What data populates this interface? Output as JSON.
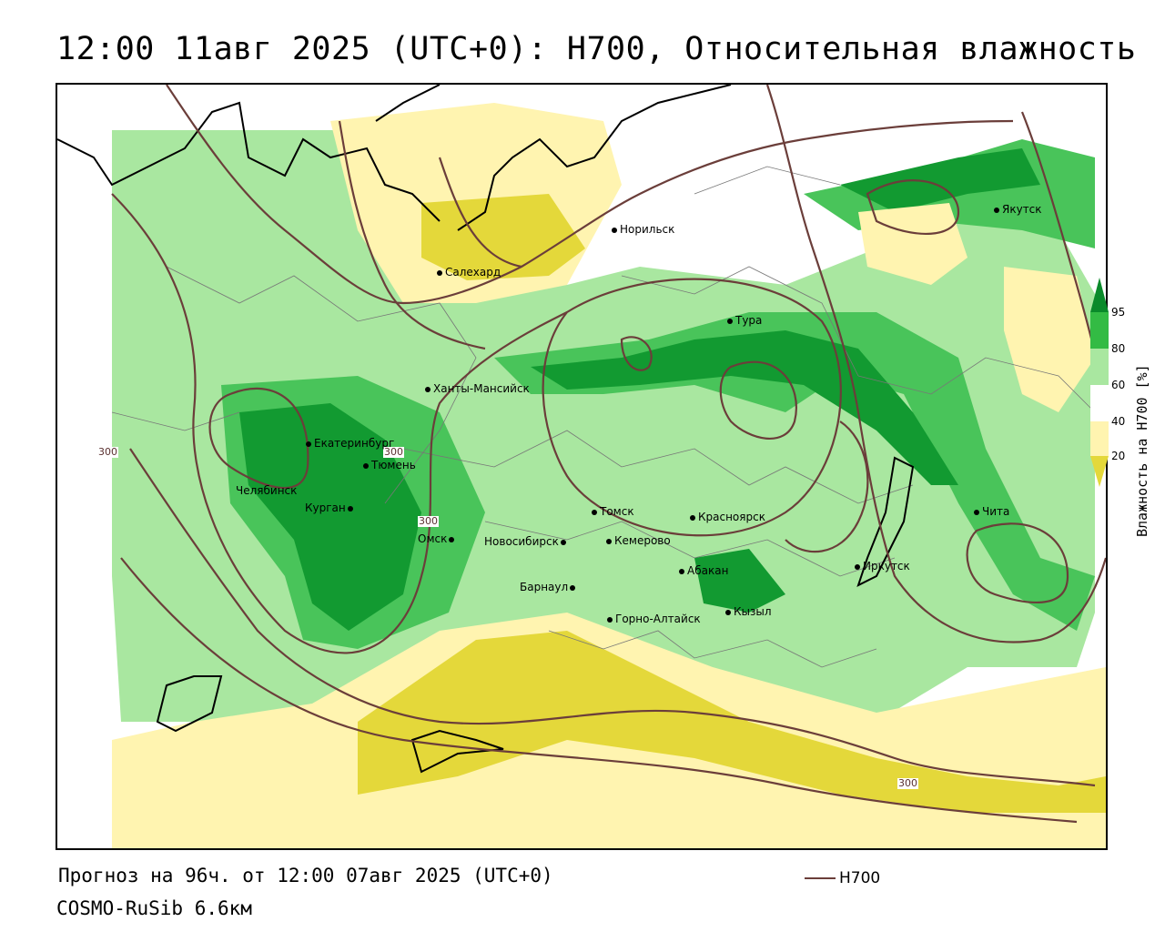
{
  "title": "12:00 11авг 2025 (UTC+0): H700, Относительная влажность",
  "forecast_line": "Прогноз на 96ч. от 12:00 07авг 2025 (UTC+0)",
  "model_line": "COSMO-RuSib 6.6км",
  "line_legend": {
    "label": "H700",
    "color": "#6b3e3a"
  },
  "colorbar": {
    "title": "Влажность на H700 [%]",
    "ticks": [
      "95",
      "80",
      "60",
      "40",
      "20"
    ],
    "colors": [
      "#0a8a2a",
      "#33bb44",
      "#a9e7a0",
      "#ffffff",
      "#fff4b0",
      "#e4d83a"
    ]
  },
  "fields": {
    "humid": "#a9e7a0",
    "humid2": "#49c45a",
    "humid3": "#129a31",
    "dry": "#fff4b0",
    "dry2": "#e4d83a",
    "contour": "#6b3e3a"
  },
  "cities": [
    {
      "name": "Норильск"
    },
    {
      "name": "Якутск"
    },
    {
      "name": "Салехард"
    },
    {
      "name": "Тура"
    },
    {
      "name": "Ханты-Мансийск"
    },
    {
      "name": "Екатеринбург"
    },
    {
      "name": "Тюмень"
    },
    {
      "name": "Челябинск"
    },
    {
      "name": "Курган"
    },
    {
      "name": "Омск"
    },
    {
      "name": "Новосибирск"
    },
    {
      "name": "Томск"
    },
    {
      "name": "Красноярск"
    },
    {
      "name": "Кемерово"
    },
    {
      "name": "Абакан"
    },
    {
      "name": "Барнаул"
    },
    {
      "name": "Горно-Алтайск"
    },
    {
      "name": "Кызыл"
    },
    {
      "name": "Иркутск"
    },
    {
      "name": "Чита"
    }
  ],
  "contour_labels": [
    "300",
    "300",
    "300",
    "300"
  ]
}
